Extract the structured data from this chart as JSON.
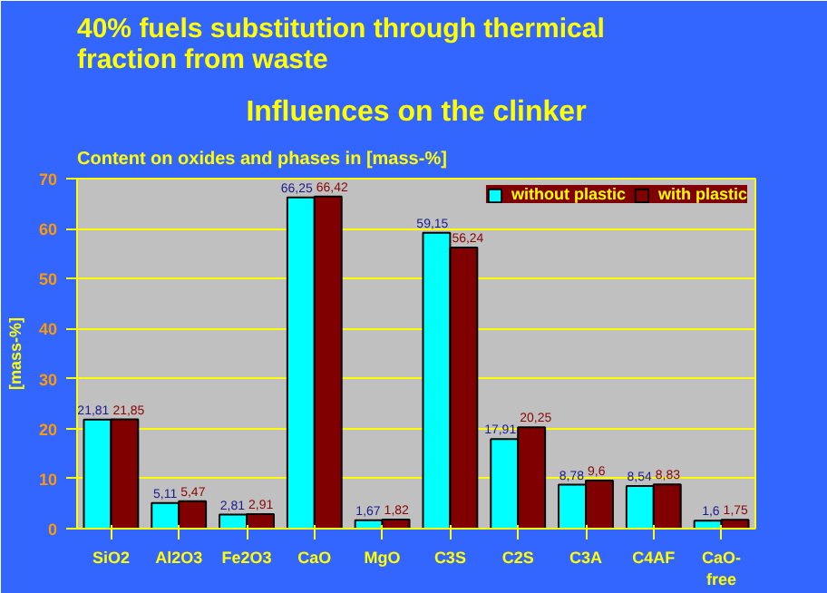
{
  "chart_data": {
    "type": "bar",
    "title": "40% fuels substitution through thermical fraction from waste",
    "subtitle": "Influences on the clinker",
    "annotations": [
      "Content on oxides and phases in [mass-%]"
    ],
    "ylabel": "[mass-%]",
    "categories": [
      "SiO2",
      "Al2O3",
      "Fe2O3",
      "CaO",
      "MgO",
      "C3S",
      "C2S",
      "C3A",
      "C4AF",
      "CaO-\nfree"
    ],
    "series": [
      {
        "name": "without plastic",
        "color": "#00ffff",
        "values": [
          21.81,
          5.11,
          2.81,
          66.25,
          1.67,
          59.15,
          17.91,
          8.78,
          8.54,
          1.6
        ],
        "value_labels": [
          "21,81",
          "5,11",
          "2,81",
          "66,25",
          "1,67",
          "59,15",
          "17,91",
          "8,78",
          "8,54",
          "1,6"
        ]
      },
      {
        "name": "with plastic",
        "color": "#800000",
        "values": [
          21.85,
          5.47,
          2.91,
          66.42,
          1.82,
          56.24,
          20.25,
          9.6,
          8.83,
          1.75
        ],
        "value_labels": [
          "21,85",
          "5,47",
          "2,91",
          "66,42",
          "1,82",
          "56,24",
          "20,25",
          "9,6",
          "8,83",
          "1,75"
        ]
      }
    ],
    "ylim": [
      0,
      70
    ],
    "yticks": [
      0,
      10,
      20,
      30,
      40,
      50,
      60,
      70
    ],
    "grid": "y",
    "legend": "top right"
  }
}
